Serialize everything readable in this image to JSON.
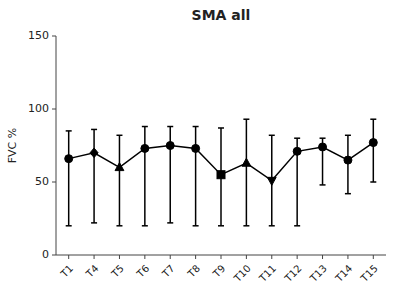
{
  "chart_data": {
    "type": "line",
    "title": "SMA all",
    "y_label": "FVC %",
    "categories": [
      "T1",
      "T4",
      "T5",
      "T6",
      "T7",
      "T8",
      "T9",
      "T10",
      "T11",
      "T12",
      "T13",
      "T14",
      "T15"
    ],
    "values": [
      66,
      70,
      60,
      73,
      75,
      73,
      55,
      63,
      51,
      71,
      74,
      65,
      77
    ],
    "err_low": [
      20,
      22,
      20,
      20,
      22,
      20,
      20,
      20,
      20,
      20,
      48,
      42,
      50
    ],
    "err_high": [
      85,
      86,
      82,
      88,
      88,
      88,
      87,
      93,
      82,
      80,
      80,
      82,
      93
    ],
    "marker": [
      "circle",
      "diamond",
      "triangle-up",
      "circle",
      "circle",
      "circle",
      "square",
      "triangle-up",
      "triangle-down",
      "circle",
      "circle",
      "circle",
      "circle"
    ],
    "color": "#000000",
    "ylim": [
      0,
      150
    ],
    "yticks": [
      0,
      50,
      100,
      150
    ],
    "grid": false
  }
}
